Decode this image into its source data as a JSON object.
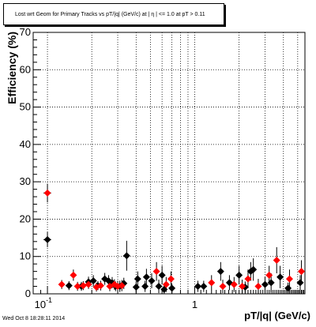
{
  "chart_data": {
    "type": "scatter",
    "title": "Lost wrt Geom for Primary Tracks vs pT/|q| (GeV/c) at |  η | <= 1.0 at pT > 0.11",
    "xlabel": "pT/|q|  (GeV/c)",
    "ylabel": "Efficiency (%)",
    "xscale": "log",
    "xlim": [
      0.08,
      5.6
    ],
    "ylim": [
      0,
      70
    ],
    "xticklabels": [
      "10",
      "-1",
      "1"
    ],
    "yticks": [
      "0",
      "10",
      "20",
      "30",
      "40",
      "50",
      "60",
      "70"
    ],
    "grid": true,
    "series": [
      {
        "color": "#000000",
        "points": [
          {
            "x": 0.1,
            "y": 14.5,
            "yerr": 2.0,
            "xerr": 0.006
          },
          {
            "x": 0.14,
            "y": 2.2,
            "yerr": 1.2
          },
          {
            "x": 0.17,
            "y": 2.0,
            "yerr": 1.2
          },
          {
            "x": 0.19,
            "y": 3.2,
            "yerr": 1.4
          },
          {
            "x": 0.205,
            "y": 3.5,
            "yerr": 1.5
          },
          {
            "x": 0.22,
            "y": 2.2,
            "yerr": 1.2
          },
          {
            "x": 0.245,
            "y": 4.0,
            "yerr": 1.6
          },
          {
            "x": 0.26,
            "y": 3.5,
            "yerr": 1.5
          },
          {
            "x": 0.275,
            "y": 3.0,
            "yerr": 1.5
          },
          {
            "x": 0.29,
            "y": 2.0,
            "yerr": 1.3
          },
          {
            "x": 0.31,
            "y": 2.0,
            "yerr": 1.5
          },
          {
            "x": 0.33,
            "y": 2.8,
            "yerr": 1.5
          },
          {
            "x": 0.345,
            "y": 10.2,
            "yerr": 4.0
          },
          {
            "x": 0.4,
            "y": 1.8,
            "yerr": 1.5
          },
          {
            "x": 0.41,
            "y": 4.0,
            "yerr": 2.0
          },
          {
            "x": 0.46,
            "y": 2.0,
            "yerr": 1.5
          },
          {
            "x": 0.47,
            "y": 4.5,
            "yerr": 2.2
          },
          {
            "x": 0.51,
            "y": 3.5,
            "yerr": 2.0
          },
          {
            "x": 0.57,
            "y": 2.0,
            "yerr": 1.8
          },
          {
            "x": 0.6,
            "y": 5.0,
            "yerr": 2.5
          },
          {
            "x": 0.62,
            "y": 1.2,
            "yerr": 1.2
          },
          {
            "x": 0.7,
            "y": 1.5,
            "yerr": 1.3
          },
          {
            "x": 1.05,
            "y": 2.0,
            "yerr": 1.5
          },
          {
            "x": 1.15,
            "y": 2.0,
            "yerr": 1.5
          },
          {
            "x": 1.5,
            "y": 6.0,
            "yerr": 2.5
          },
          {
            "x": 1.72,
            "y": 3.0,
            "yerr": 2.0
          },
          {
            "x": 2.0,
            "y": 5.0,
            "yerr": 2.5
          },
          {
            "x": 2.2,
            "y": 1.8,
            "yerr": 1.5
          },
          {
            "x": 2.4,
            "y": 6.0,
            "yerr": 2.5
          },
          {
            "x": 2.5,
            "y": 6.5,
            "yerr": 3.0
          },
          {
            "x": 3.0,
            "y": 2.5,
            "yerr": 2.0
          },
          {
            "x": 3.3,
            "y": 3.0,
            "yerr": 2.5
          },
          {
            "x": 3.8,
            "y": 4.5,
            "yerr": 3.0
          },
          {
            "x": 4.3,
            "y": 1.5,
            "yerr": 1.5
          },
          {
            "x": 5.2,
            "y": 3.0,
            "yerr": 2.0
          }
        ]
      },
      {
        "color": "#ff0000",
        "points": [
          {
            "x": 0.1,
            "y": 27.0,
            "yerr": 2.5,
            "xerr": 0.006
          },
          {
            "x": 0.125,
            "y": 2.5,
            "yerr": 1.2
          },
          {
            "x": 0.15,
            "y": 5.0,
            "yerr": 1.5
          },
          {
            "x": 0.16,
            "y": 2.0,
            "yerr": 1.2
          },
          {
            "x": 0.175,
            "y": 2.2,
            "yerr": 1.2
          },
          {
            "x": 0.19,
            "y": 2.5,
            "yerr": 1.2
          },
          {
            "x": 0.215,
            "y": 1.8,
            "yerr": 1.2
          },
          {
            "x": 0.23,
            "y": 2.2,
            "yerr": 1.3
          },
          {
            "x": 0.265,
            "y": 2.0,
            "yerr": 1.3
          },
          {
            "x": 0.285,
            "y": 2.5,
            "yerr": 1.4
          },
          {
            "x": 0.3,
            "y": 2.0,
            "yerr": 1.5
          },
          {
            "x": 0.32,
            "y": 2.2,
            "yerr": 1.5
          },
          {
            "x": 0.55,
            "y": 6.0,
            "yerr": 2.5
          },
          {
            "x": 0.64,
            "y": 2.5,
            "yerr": 2.0
          },
          {
            "x": 0.69,
            "y": 4.0,
            "yerr": 2.0
          },
          {
            "x": 1.3,
            "y": 3.0,
            "yerr": 2.0
          },
          {
            "x": 1.55,
            "y": 2.0,
            "yerr": 1.8
          },
          {
            "x": 1.85,
            "y": 2.5,
            "yerr": 2.0
          },
          {
            "x": 2.1,
            "y": 2.0,
            "yerr": 1.8
          },
          {
            "x": 2.3,
            "y": 4.0,
            "yerr": 2.5
          },
          {
            "x": 2.7,
            "y": 2.0,
            "yerr": 2.0
          },
          {
            "x": 3.2,
            "y": 5.0,
            "yerr": 2.5
          },
          {
            "x": 3.6,
            "y": 9.0,
            "yerr": 3.5
          },
          {
            "x": 4.4,
            "y": 4.0,
            "yerr": 2.5
          },
          {
            "x": 5.3,
            "y": 6.0,
            "yerr": 3.0
          }
        ]
      }
    ]
  },
  "footer": {
    "timestamp": "Wed Oct  8 18:28:11 2014"
  }
}
